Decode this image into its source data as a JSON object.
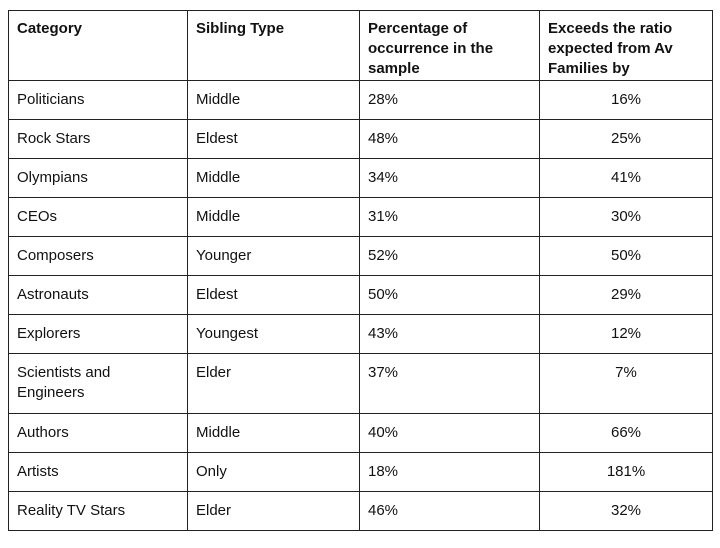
{
  "chart_data": {
    "type": "table",
    "columns": [
      "Category",
      "Sibling Type",
      "Percentage of occurrence in the sample",
      "Exceeds the ratio expected from Av Families by"
    ],
    "rows": [
      {
        "category": "Politicians",
        "sibling_type": "Middle",
        "percentage": "28%",
        "exceeds": "16%"
      },
      {
        "category": "Rock Stars",
        "sibling_type": "Eldest",
        "percentage": "48%",
        "exceeds": "25%"
      },
      {
        "category": "Olympians",
        "sibling_type": "Middle",
        "percentage": "34%",
        "exceeds": "41%"
      },
      {
        "category": "CEOs",
        "sibling_type": "Middle",
        "percentage": "31%",
        "exceeds": "30%"
      },
      {
        "category": "Composers",
        "sibling_type": "Younger",
        "percentage": "52%",
        "exceeds": "50%"
      },
      {
        "category": "Astronauts",
        "sibling_type": "Eldest",
        "percentage": "50%",
        "exceeds": "29%"
      },
      {
        "category": "Explorers",
        "sibling_type": "Youngest",
        "percentage": "43%",
        "exceeds": "12%"
      },
      {
        "category": "Scientists and Engineers",
        "sibling_type": "Elder",
        "percentage": "37%",
        "exceeds": "7%"
      },
      {
        "category": "Authors",
        "sibling_type": "Middle",
        "percentage": "40%",
        "exceeds": "66%"
      },
      {
        "category": "Artists",
        "sibling_type": "Only",
        "percentage": "18%",
        "exceeds": "181%"
      },
      {
        "category": "Reality TV Stars",
        "sibling_type": "Elder",
        "percentage": "46%",
        "exceeds": "32%"
      }
    ]
  }
}
